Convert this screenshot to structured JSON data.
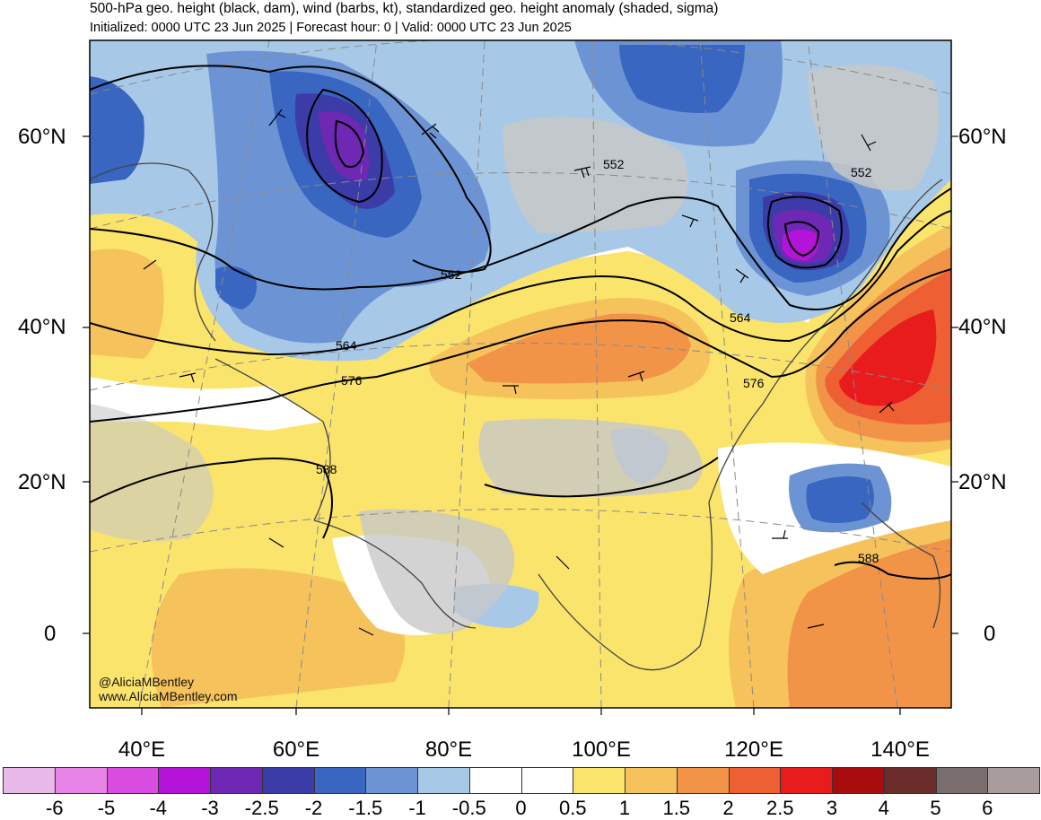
{
  "header": {
    "title": "500-hPa geo. height (black, dam), wind (barbs, kt), standardized geo. height anomaly (shaded, sigma)",
    "subtitle": "Initialized: 0000 UTC 23 Jun 2025 | Forecast hour: 0 | Valid: 0000 UTC 23 Jun 2025"
  },
  "axes": {
    "lat_labels": [
      "60°N",
      "40°N",
      "20°N",
      "0"
    ],
    "lon_labels": [
      "40°E",
      "60°E",
      "80°E",
      "100°E",
      "120°E",
      "140°E"
    ]
  },
  "contour_labels": [
    "552",
    "552",
    "552",
    "564",
    "564",
    "576",
    "576",
    "588",
    "588"
  ],
  "credit": {
    "handle": "@AliciaMBentley",
    "url": "www.AliciaMBentley.com"
  },
  "colorbar": {
    "colors": [
      "#e8b8e8",
      "#e884e8",
      "#d84ce0",
      "#b414d8",
      "#6e28b4",
      "#3c3ca8",
      "#3866c0",
      "#6c94d4",
      "#a8c8e8",
      "#ffffff",
      "#ffffff",
      "#fbe46c",
      "#f6c25c",
      "#f29448",
      "#ee6034",
      "#e81c1c",
      "#a80c0c",
      "#6c2c2c",
      "#7a6e6e",
      "#a89c9c"
    ],
    "ticks": [
      "-6",
      "-5",
      "-4",
      "-3",
      "-2.5",
      "-2",
      "-1.5",
      "-1",
      "-0.5",
      "0",
      "0.5",
      "1",
      "1.5",
      "2",
      "2.5",
      "3",
      "4",
      "5",
      "6"
    ]
  }
}
